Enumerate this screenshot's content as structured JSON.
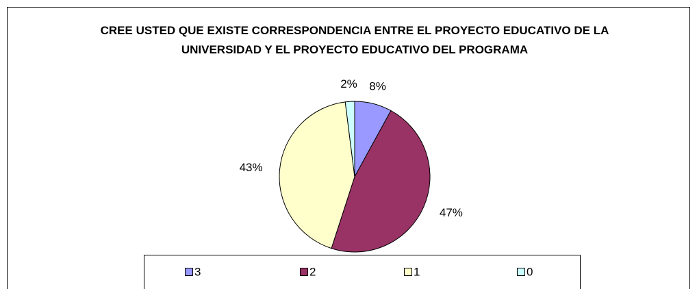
{
  "chart_data": {
    "type": "pie",
    "title": "CREE USTED QUE EXISTE CORRESPONDENCIA ENTRE EL PROYECTO EDUCATIVO DE LA UNIVERSIDAD Y EL PROYECTO EDUCATIVO DEL PROGRAMA",
    "categories": [
      "3",
      "2",
      "1",
      "0"
    ],
    "values": [
      8,
      47,
      43,
      2
    ],
    "value_labels": [
      "8%",
      "47%",
      "43%",
      "2%"
    ],
    "colors": [
      "#9999ff",
      "#993366",
      "#ffffcc",
      "#ccffff"
    ],
    "legend": "bottom"
  }
}
